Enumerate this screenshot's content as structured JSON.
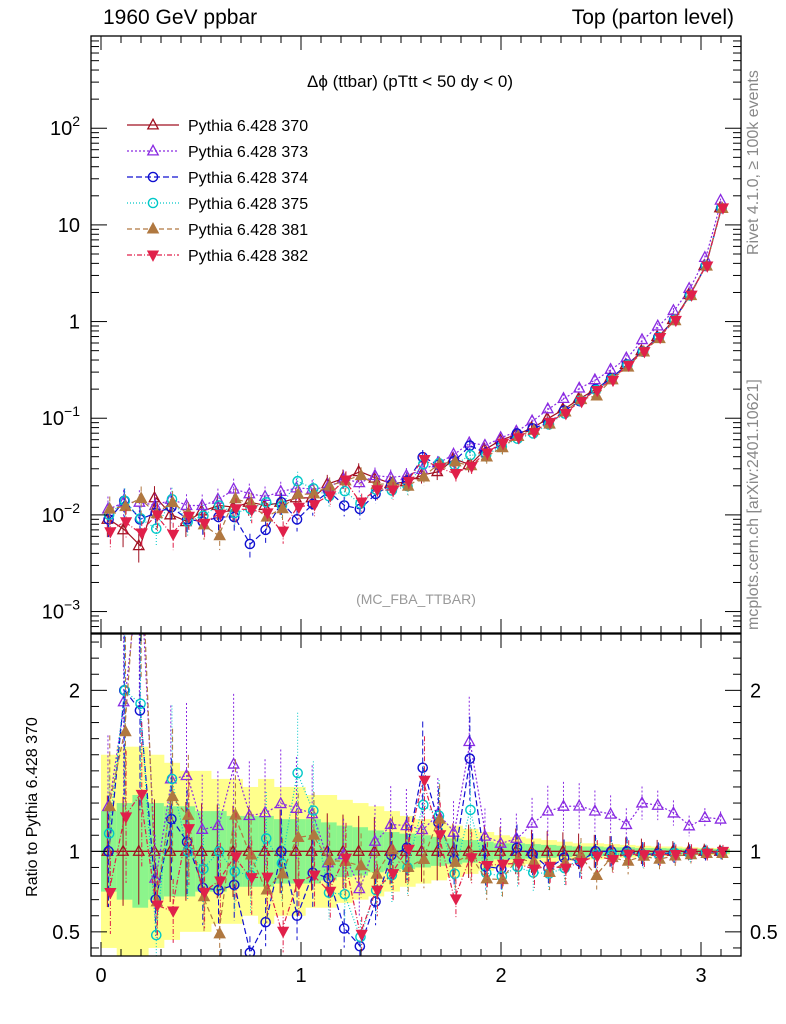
{
  "header": {
    "left": "1960 GeV ppbar",
    "right": "Top (parton level)"
  },
  "side_labels": {
    "rivet": "Rivet 4.1.0, ≥ 100k events",
    "mcplots": "mcplots.cern.ch [arXiv:2401.10621]"
  },
  "chart_data": {
    "type": "line",
    "title": "Δϕ (ttbar) (pTtt < 50 dy < 0)",
    "watermark": "(MC_FBA_TTBAR)",
    "xlabel": "",
    "ylabel_ratio": "Ratio to Pythia 6.428 370",
    "xlim": [
      -0.05,
      3.2
    ],
    "ylim_main": [
      0.0006,
      900
    ],
    "ylim_ratio": [
      0.35,
      2.35
    ],
    "yscale_main": "log",
    "x_ticks": [
      {
        "v": 0,
        "label": "0"
      },
      {
        "v": 1,
        "label": "1"
      },
      {
        "v": 2,
        "label": "2"
      },
      {
        "v": 3,
        "label": "3"
      }
    ],
    "y_ticks_main": [
      {
        "v": 100,
        "base": "10",
        "exp": "2"
      },
      {
        "v": 10,
        "base": "10",
        "exp": ""
      },
      {
        "v": 1,
        "base": "1",
        "exp": ""
      },
      {
        "v": 0.1,
        "base": "10",
        "exp": "−1"
      },
      {
        "v": 0.01,
        "base": "10",
        "exp": "−2"
      },
      {
        "v": 0.001,
        "base": "10",
        "exp": "−3"
      }
    ],
    "y_ticks_ratio": [
      {
        "v": 2,
        "label": "2"
      },
      {
        "v": 1,
        "label": "1"
      },
      {
        "v": 0.5,
        "label": "0.5"
      }
    ],
    "x": [
      0.0393,
      0.1178,
      0.1963,
      0.2749,
      0.3534,
      0.432,
      0.5105,
      0.589,
      0.6676,
      0.7461,
      0.8247,
      0.9032,
      0.9817,
      1.0603,
      1.1388,
      1.2174,
      1.2959,
      1.3744,
      1.453,
      1.5315,
      1.6101,
      1.6886,
      1.7671,
      1.8457,
      1.9242,
      2.0028,
      2.0813,
      2.1598,
      2.2384,
      2.3169,
      2.3955,
      2.474,
      2.5525,
      2.6311,
      2.7096,
      2.7882,
      2.8667,
      2.9452,
      3.0238,
      3.1023
    ],
    "band_inner": [
      0.25,
      0.3,
      0.35,
      0.3,
      0.28,
      0.28,
      0.25,
      0.25,
      0.22,
      0.22,
      0.22,
      0.2,
      0.2,
      0.2,
      0.18,
      0.16,
      0.15,
      0.13,
      0.12,
      0.11,
      0.1,
      0.09,
      0.08,
      0.07,
      0.06,
      0.05,
      0.05,
      0.045,
      0.04,
      0.035,
      0.03,
      0.03,
      0.025,
      0.025,
      0.02,
      0.02,
      0.018,
      0.016,
      0.015,
      0.014
    ],
    "band_outer": [
      0.6,
      0.65,
      0.65,
      0.6,
      0.55,
      0.5,
      0.5,
      0.45,
      0.45,
      0.4,
      0.45,
      0.4,
      0.4,
      0.35,
      0.35,
      0.32,
      0.3,
      0.28,
      0.25,
      0.22,
      0.2,
      0.18,
      0.16,
      0.14,
      0.12,
      0.1,
      0.09,
      0.08,
      0.07,
      0.06,
      0.05,
      0.05,
      0.045,
      0.04,
      0.035,
      0.03,
      0.03,
      0.025,
      0.022,
      0.02
    ],
    "series": [
      {
        "name": "Pythia 6.428 370",
        "color": "#a01020",
        "marker": "triangle-open",
        "dash": "",
        "ref": true,
        "values": [
          0.009,
          0.007,
          0.0048,
          0.015,
          0.01,
          0.0085,
          0.011,
          0.0125,
          0.012,
          0.0135,
          0.0125,
          0.0135,
          0.015,
          0.015,
          0.021,
          0.024,
          0.028,
          0.024,
          0.021,
          0.022,
          0.026,
          0.028,
          0.038,
          0.033,
          0.048,
          0.06,
          0.068,
          0.08,
          0.1,
          0.125,
          0.16,
          0.2,
          0.26,
          0.36,
          0.5,
          0.7,
          1.05,
          1.9,
          3.8,
          15.0
        ]
      },
      {
        "name": "Pythia 6.428 373",
        "color": "#8a2be2",
        "marker": "triangle-open",
        "dash": "2,2",
        "values": [
          0.0115,
          0.0135,
          0.0135,
          0.0125,
          0.0145,
          0.0125,
          0.0125,
          0.0145,
          0.0185,
          0.0165,
          0.0155,
          0.0175,
          0.019,
          0.0185,
          0.0195,
          0.0235,
          0.0215,
          0.0255,
          0.0245,
          0.0255,
          0.0295,
          0.0345,
          0.0425,
          0.0555,
          0.0525,
          0.063,
          0.0735,
          0.094,
          0.125,
          0.16,
          0.205,
          0.25,
          0.32,
          0.42,
          0.65,
          0.9,
          1.3,
          2.2,
          4.6,
          18.0
        ]
      },
      {
        "name": "Pythia 6.428 374",
        "color": "#1010d0",
        "marker": "circle-open",
        "dash": "6,3",
        "values": [
          0.009,
          0.014,
          0.009,
          0.0105,
          0.012,
          0.009,
          0.0085,
          0.0095,
          0.0095,
          0.005,
          0.007,
          0.0135,
          0.009,
          0.013,
          0.0175,
          0.0125,
          0.0115,
          0.0165,
          0.0205,
          0.0225,
          0.0395,
          0.033,
          0.036,
          0.052,
          0.0435,
          0.0535,
          0.0695,
          0.0785,
          0.0895,
          0.12,
          0.15,
          0.2,
          0.26,
          0.36,
          0.49,
          0.69,
          1.04,
          1.88,
          3.76,
          14.85
        ]
      },
      {
        "name": "Pythia 6.428 375",
        "color": "#00c8c8",
        "marker": "circle-open",
        "dash": "1,2",
        "values": [
          0.01,
          0.014,
          0.0092,
          0.0072,
          0.0145,
          0.0085,
          0.0098,
          0.0125,
          0.0105,
          0.0115,
          0.0135,
          0.0125,
          0.0223,
          0.0188,
          0.0156,
          0.0176,
          0.0131,
          0.0182,
          0.0179,
          0.0198,
          0.0335,
          0.0342,
          0.0327,
          0.0415,
          0.0416,
          0.0507,
          0.0614,
          0.0695,
          0.0862,
          0.112,
          0.152,
          0.196,
          0.254,
          0.356,
          0.488,
          0.685,
          1.04,
          1.86,
          3.78,
          14.9
        ]
      },
      {
        "name": "Pythia 6.428 381",
        "color": "#b07840",
        "marker": "triangle-filled",
        "dash": "5,3",
        "values": [
          0.0115,
          0.0122,
          0.0148,
          0.0103,
          0.0134,
          0.0104,
          0.0079,
          0.0061,
          0.0147,
          0.0132,
          0.0095,
          0.0116,
          0.0163,
          0.0165,
          0.0198,
          0.0225,
          0.0255,
          0.0206,
          0.0212,
          0.0198,
          0.0247,
          0.0336,
          0.0354,
          0.0323,
          0.0398,
          0.0495,
          0.0648,
          0.0749,
          0.0869,
          0.116,
          0.156,
          0.17,
          0.25,
          0.338,
          0.485,
          0.666,
          1.02,
          1.86,
          3.75,
          14.8
        ]
      },
      {
        "name": "Pythia 6.428 382",
        "color": "#e0204a",
        "marker": "triangledown-filled",
        "dash": "5,2,1,2",
        "values": [
          0.0067,
          0.0085,
          0.0065,
          0.01,
          0.0063,
          0.0097,
          0.0082,
          0.0102,
          0.0116,
          0.0113,
          0.0105,
          0.0068,
          0.012,
          0.0128,
          0.0158,
          0.023,
          0.0136,
          0.0182,
          0.0181,
          0.0223,
          0.0375,
          0.0309,
          0.0268,
          0.0317,
          0.0438,
          0.0552,
          0.0629,
          0.0712,
          0.0908,
          0.112,
          0.149,
          0.194,
          0.247,
          0.354,
          0.49,
          0.685,
          1.03,
          1.88,
          3.76,
          15.0
        ]
      }
    ]
  }
}
